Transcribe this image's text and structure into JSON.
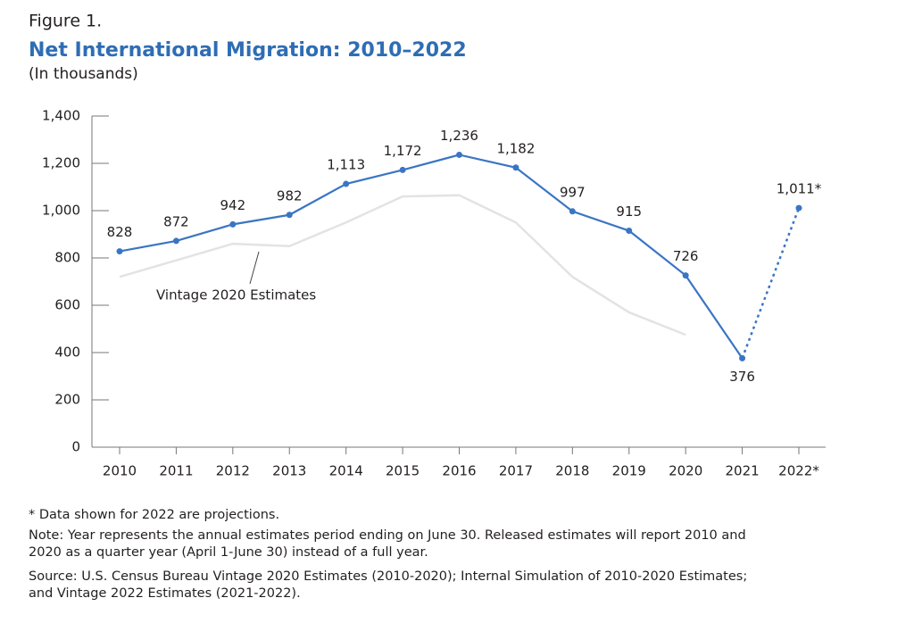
{
  "chart_data": {
    "type": "line",
    "figure_label": "Figure 1.",
    "title": "Net International Migration: 2010–2022",
    "subtitle": "(In thousands)",
    "categories": [
      "2010",
      "2011",
      "2012",
      "2013",
      "2014",
      "2015",
      "2016",
      "2017",
      "2018",
      "2019",
      "2020",
      "2021",
      "2022*"
    ],
    "series": [
      {
        "name": null,
        "color": "#3a75c4",
        "values": [
          828,
          872,
          942,
          982,
          1113,
          1172,
          1236,
          1182,
          997,
          915,
          726,
          376,
          1011
        ],
        "value_labels": [
          "828",
          "872",
          "942",
          "982",
          "1,113",
          "1,172",
          "1,236",
          "1,182",
          "997",
          "915",
          "726",
          "376",
          "1,011*"
        ],
        "dashed_segments": [
          11
        ]
      },
      {
        "name": "Vintage 2020 Estimates",
        "color": "#e3e3e3",
        "values": [
          720,
          790,
          860,
          850,
          950,
          1060,
          1065,
          950,
          720,
          570,
          475,
          null,
          null
        ]
      }
    ],
    "ylim": [
      0,
      1400
    ],
    "yticks": [
      0,
      200,
      400,
      600,
      800,
      {
        "value": 1000,
        "label": "1,000"
      },
      {
        "value": 1200,
        "label": "1,200"
      },
      {
        "value": 1400,
        "label": "1,400"
      }
    ],
    "notes": [
      "* Data shown for 2022 are projections.",
      "Note: Year represents the annual estimates period ending on June 30. Released estimates will report 2010 and",
      "2020 as a quarter year (April 1-June 30) instead of a full year.",
      "Source: U.S. Census Bureau Vintage 2020 Estimates (2010-2020); Internal Simulation of 2010-2020 Estimates;",
      "and Vintage 2022 Estimates (2021-2022)."
    ]
  }
}
